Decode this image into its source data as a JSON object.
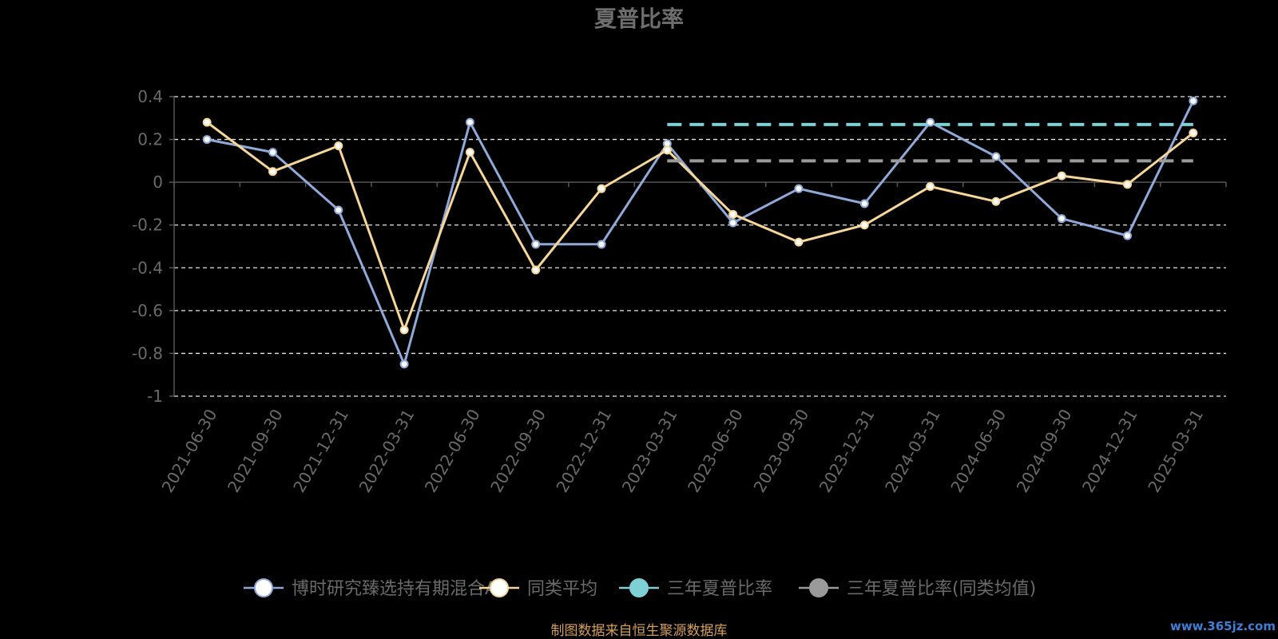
{
  "chart_data": {
    "type": "line",
    "title": "夏普比率",
    "categories": [
      "2021-06-30",
      "2021-09-30",
      "2021-12-31",
      "2022-03-31",
      "2022-06-30",
      "2022-09-30",
      "2022-12-31",
      "2023-03-31",
      "2023-06-30",
      "2023-09-30",
      "2023-12-31",
      "2024-03-31",
      "2024-06-30",
      "2024-09-30",
      "2024-12-31",
      "2025-03-31"
    ],
    "ylim": [
      -1,
      0.4
    ],
    "yticks": [
      0.4,
      0.2,
      0,
      -0.2,
      -0.4,
      -0.6,
      -0.8,
      -1
    ],
    "ytick_labels": [
      "0.4",
      "0.2",
      "0",
      "-0.2",
      "-0.4",
      "-0.6",
      "-0.8",
      "-1"
    ],
    "grid": true,
    "legend_position": "bottom",
    "series": [
      {
        "name": "博时研究臻选持有期混合A",
        "color": "#8fa9d8",
        "values": [
          0.2,
          0.14,
          -0.13,
          -0.85,
          0.28,
          -0.29,
          -0.29,
          0.18,
          -0.19,
          -0.03,
          -0.1,
          0.28,
          0.12,
          -0.17,
          -0.25,
          0.38
        ]
      },
      {
        "name": "同类平均",
        "color": "#f7d799",
        "values": [
          0.28,
          0.05,
          0.17,
          -0.69,
          0.14,
          -0.41,
          -0.03,
          0.15,
          -0.15,
          -0.28,
          -0.2,
          -0.02,
          -0.09,
          0.03,
          -0.01,
          0.23
        ]
      },
      {
        "name": "三年夏普比率",
        "color": "#7fd0d4",
        "style": "dashed",
        "from": "2023-03-31",
        "to": "2025-03-31",
        "value": 0.27
      },
      {
        "name": "三年夏普比率(同类均值)",
        "color": "#9a9a9a",
        "style": "dashed",
        "from": "2023-03-31",
        "to": "2025-03-31",
        "value": 0.1
      }
    ]
  },
  "source_note": "制图数据来自恒生聚源数据库",
  "watermark": "www.365jz.com"
}
